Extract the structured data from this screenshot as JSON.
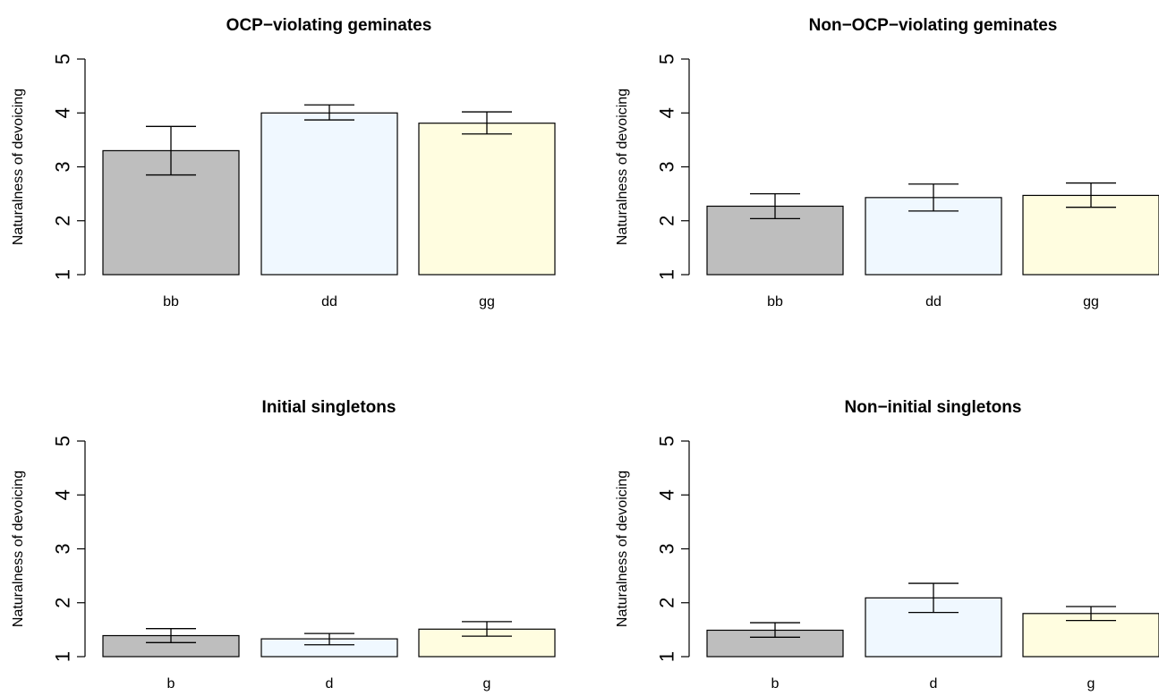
{
  "chart_data": [
    {
      "type": "bar",
      "title": "OCP−violating geminates",
      "ylabel": "Naturalness of devoicing",
      "ylim": [
        1,
        5
      ],
      "yticks": [
        "1",
        "2",
        "3",
        "4",
        "5"
      ],
      "categories": [
        "bb",
        "dd",
        "gg"
      ],
      "values": [
        3.3,
        4.0,
        3.81
      ],
      "error_low": [
        2.85,
        3.87,
        3.61
      ],
      "error_high": [
        3.75,
        4.15,
        4.02
      ],
      "colors": [
        "#bebebe",
        "#f0f8ff",
        "#fffde0"
      ]
    },
    {
      "type": "bar",
      "title": "Non−OCP−violating geminates",
      "ylabel": "Naturalness of devoicing",
      "ylim": [
        1,
        5
      ],
      "yticks": [
        "1",
        "2",
        "3",
        "4",
        "5"
      ],
      "categories": [
        "bb",
        "dd",
        "gg"
      ],
      "values": [
        2.27,
        2.43,
        2.47
      ],
      "error_low": [
        2.04,
        2.18,
        2.25
      ],
      "error_high": [
        2.5,
        2.68,
        2.7
      ],
      "colors": [
        "#bebebe",
        "#f0f8ff",
        "#fffde0"
      ]
    },
    {
      "type": "bar",
      "title": "Initial singletons",
      "ylabel": "Naturalness of devoicing",
      "ylim": [
        1,
        5
      ],
      "yticks": [
        "1",
        "2",
        "3",
        "4",
        "5"
      ],
      "categories": [
        "b",
        "d",
        "g"
      ],
      "values": [
        1.39,
        1.33,
        1.51
      ],
      "error_low": [
        1.26,
        1.22,
        1.38
      ],
      "error_high": [
        1.52,
        1.43,
        1.65
      ],
      "colors": [
        "#bebebe",
        "#f0f8ff",
        "#fffde0"
      ]
    },
    {
      "type": "bar",
      "title": "Non−initial singletons",
      "ylabel": "Naturalness of devoicing",
      "ylim": [
        1,
        5
      ],
      "yticks": [
        "1",
        "2",
        "3",
        "4",
        "5"
      ],
      "categories": [
        "b",
        "d",
        "g"
      ],
      "values": [
        1.49,
        2.09,
        1.8
      ],
      "error_low": [
        1.36,
        1.82,
        1.67
      ],
      "error_high": [
        1.63,
        2.36,
        1.93
      ],
      "colors": [
        "#bebebe",
        "#f0f8ff",
        "#fffde0"
      ]
    }
  ]
}
